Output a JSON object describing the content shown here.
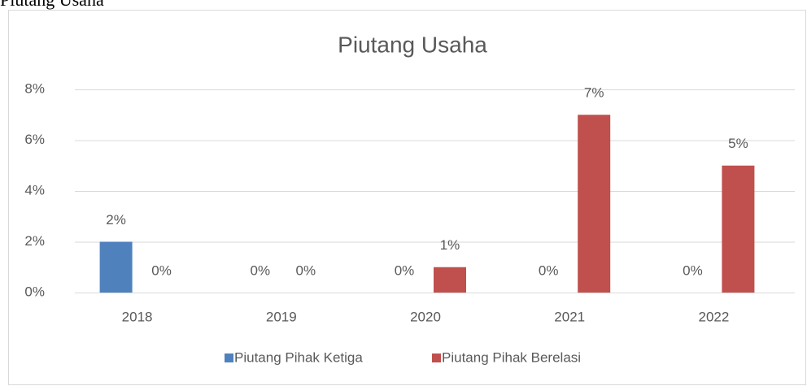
{
  "caption": "Piutang Usaha",
  "chart_data": {
    "type": "bar",
    "title": "Piutang Usaha",
    "categories": [
      "2018",
      "2019",
      "2020",
      "2021",
      "2022"
    ],
    "series": [
      {
        "name": "Piutang Pihak Ketiga",
        "color": "#4f81bd",
        "values": [
          2,
          0,
          0,
          0,
          0
        ],
        "value_labels": [
          "2%",
          "0%",
          "0%",
          "0%",
          "0%"
        ]
      },
      {
        "name": "Piutang Pihak Berelasi",
        "color": "#c0504d",
        "values": [
          0,
          0,
          1,
          7,
          5
        ],
        "value_labels": [
          "0%",
          "0%",
          "1%",
          "7%",
          "5%"
        ]
      }
    ],
    "ylim": [
      0,
      8
    ],
    "yticks": [
      {
        "value": 0,
        "label": "0%"
      },
      {
        "value": 2,
        "label": "2%"
      },
      {
        "value": 4,
        "label": "4%"
      },
      {
        "value": 6,
        "label": "6%"
      },
      {
        "value": 8,
        "label": "8%"
      }
    ],
    "grid": true,
    "legend": "bottom"
  }
}
